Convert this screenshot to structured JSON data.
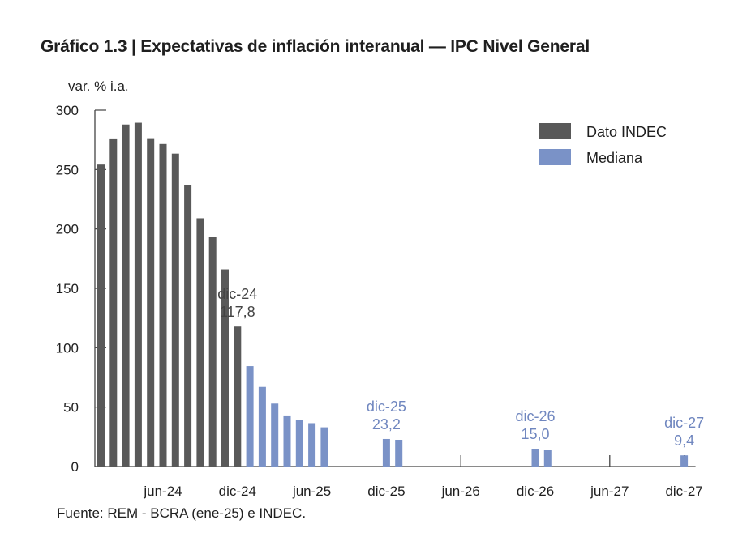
{
  "title": "Gráfico 1.3 | Expectativas de inflación interanual — IPC Nivel General",
  "source": "Fuente: REM - BCRA (ene-25) e INDEC.",
  "colors": {
    "indec": "#595959",
    "mediana": "#7a92c7",
    "annotation_indec": "#444444",
    "annotation_mediana": "#6f86bf"
  },
  "chart_data": {
    "type": "bar",
    "ylabel": "var. % i.a.",
    "ylim": [
      0,
      300
    ],
    "yticks": [
      "0",
      "50",
      "100",
      "150",
      "200",
      "250",
      "300"
    ],
    "xticks": [
      "jun-24",
      "dic-24",
      "jun-25",
      "dic-25",
      "jun-26",
      "dic-26",
      "jun-27",
      "dic-27"
    ],
    "legend": {
      "position": "top-right",
      "entries": [
        "Dato INDEC",
        "Mediana"
      ]
    },
    "grid": false,
    "series": [
      {
        "name": "Dato INDEC",
        "points": [
          {
            "x": "ene-24",
            "y": 254.2
          },
          {
            "x": "feb-24",
            "y": 276.2
          },
          {
            "x": "mar-24",
            "y": 287.9
          },
          {
            "x": "abr-24",
            "y": 289.4
          },
          {
            "x": "may-24",
            "y": 276.4
          },
          {
            "x": "jun-24",
            "y": 271.5
          },
          {
            "x": "jul-24",
            "y": 263.4
          },
          {
            "x": "ago-24",
            "y": 236.7
          },
          {
            "x": "sep-24",
            "y": 209.0
          },
          {
            "x": "oct-24",
            "y": 193.0
          },
          {
            "x": "nov-24",
            "y": 166.0
          },
          {
            "x": "dic-24",
            "y": 117.8
          }
        ]
      },
      {
        "name": "Mediana",
        "points": [
          {
            "x": "ene-25",
            "y": 84.5
          },
          {
            "x": "feb-25",
            "y": 67.0
          },
          {
            "x": "mar-25",
            "y": 53.0
          },
          {
            "x": "abr-25",
            "y": 43.0
          },
          {
            "x": "may-25",
            "y": 39.5
          },
          {
            "x": "jun-25",
            "y": 36.5
          },
          {
            "x": "jul-25",
            "y": 33.0
          },
          {
            "x": "dic-25",
            "y": 23.2
          },
          {
            "x": "ene-26",
            "y": 22.5
          },
          {
            "x": "dic-26",
            "y": 15.0
          },
          {
            "x": "ene-27",
            "y": 14.0
          },
          {
            "x": "dic-27",
            "y": 9.4
          }
        ]
      }
    ],
    "annotations": [
      {
        "x": "dic-24",
        "label": "dic-24",
        "value": "117,8",
        "series": "Dato INDEC"
      },
      {
        "x": "dic-25",
        "label": "dic-25",
        "value": "23,2",
        "series": "Mediana"
      },
      {
        "x": "dic-26",
        "label": "dic-26",
        "value": "15,0",
        "series": "Mediana"
      },
      {
        "x": "dic-27",
        "label": "dic-27",
        "value": "9,4",
        "series": "Mediana"
      }
    ]
  }
}
